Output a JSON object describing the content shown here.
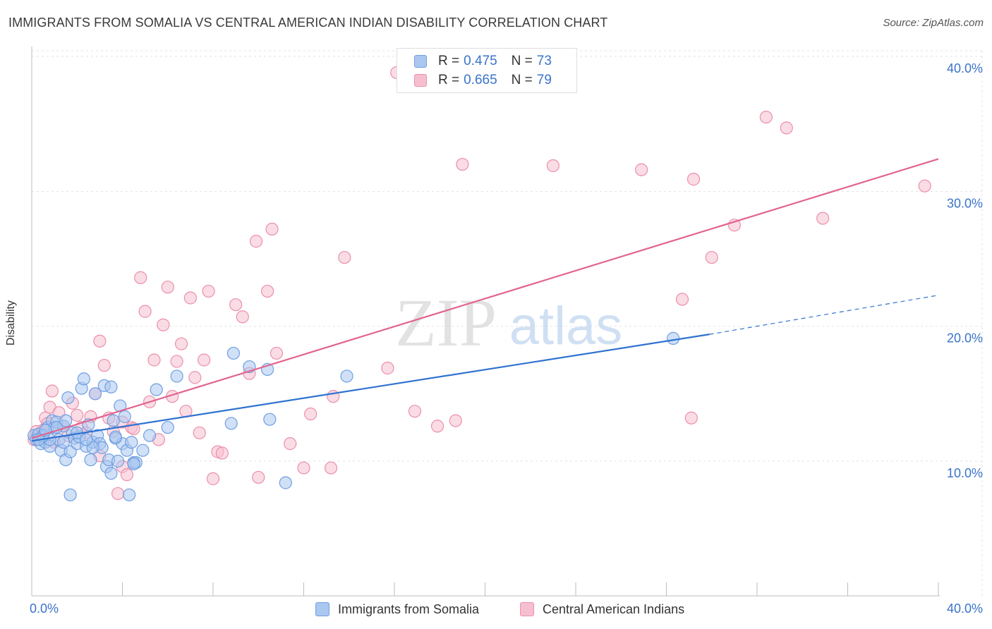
{
  "title": "IMMIGRANTS FROM SOMALIA VS CENTRAL AMERICAN INDIAN DISABILITY CORRELATION CHART",
  "source": "Source: ZipAtlas.com",
  "watermark": {
    "zip": "ZIP",
    "atlas": "atlas"
  },
  "legend": {
    "r_label": "R =",
    "n_label": "N =",
    "rows": [
      {
        "r": "0.475",
        "n": "73"
      },
      {
        "r": "0.665",
        "n": "79"
      }
    ]
  },
  "colors": {
    "blue_fill": "#aac7f0",
    "blue_stroke": "#6f9fe0",
    "blue_line": "#2f72d0",
    "pink_fill": "#f6bfd0",
    "pink_stroke": "#eb8fab",
    "pink_line": "#e2648e",
    "tick_text": "#3a73c9",
    "grid": "#e3e3e3"
  },
  "chart_data": {
    "type": "scatter",
    "title": "IMMIGRANTS FROM SOMALIA VS CENTRAL AMERICAN INDIAN DISABILITY CORRELATION CHART",
    "xlabel": "",
    "ylabel": "Disability",
    "xlim": [
      0,
      40
    ],
    "ylim": [
      0,
      42
    ],
    "x_tick_labels": [
      "0.0%",
      "40.0%"
    ],
    "y_ticks": [
      10,
      20,
      30,
      40
    ],
    "y_tick_labels": [
      "10.0%",
      "20.0%",
      "30.0%",
      "40.0%"
    ],
    "grid": true,
    "legend_position": "top-center",
    "series": [
      {
        "name": "Immigrants from Somalia",
        "color": "blue",
        "R": 0.475,
        "N": 73,
        "trend": {
          "x0": 0.0,
          "y0": 11.5,
          "x1": 29.9,
          "y1": 19.4,
          "dashed_to_x": 40.0,
          "dashed_to_y": 22.3
        },
        "points": [
          [
            0.1,
            11.9
          ],
          [
            0.2,
            11.6
          ],
          [
            0.3,
            12.0
          ],
          [
            0.4,
            11.3
          ],
          [
            0.5,
            11.8
          ],
          [
            0.6,
            11.4
          ],
          [
            0.7,
            12.5
          ],
          [
            0.8,
            11.1
          ],
          [
            0.9,
            13.0
          ],
          [
            1.0,
            12.5
          ],
          [
            1.1,
            12.9
          ],
          [
            1.2,
            11.6
          ],
          [
            1.3,
            10.8
          ],
          [
            1.4,
            11.4
          ],
          [
            1.5,
            10.1
          ],
          [
            1.6,
            14.7
          ],
          [
            1.7,
            10.7
          ],
          [
            1.8,
            12.1
          ],
          [
            1.9,
            11.7
          ],
          [
            2.0,
            11.3
          ],
          [
            2.1,
            11.8
          ],
          [
            2.2,
            15.4
          ],
          [
            2.3,
            16.1
          ],
          [
            2.4,
            11.1
          ],
          [
            2.5,
            12.7
          ],
          [
            2.6,
            10.1
          ],
          [
            2.7,
            11.4
          ],
          [
            2.8,
            15.0
          ],
          [
            2.9,
            11.9
          ],
          [
            3.0,
            11.3
          ],
          [
            3.1,
            11.0
          ],
          [
            3.2,
            15.6
          ],
          [
            3.3,
            9.6
          ],
          [
            3.4,
            10.1
          ],
          [
            3.5,
            9.1
          ],
          [
            3.6,
            13.0
          ],
          [
            3.7,
            11.7
          ],
          [
            3.8,
            10.0
          ],
          [
            3.9,
            14.1
          ],
          [
            4.0,
            11.3
          ],
          [
            4.1,
            13.3
          ],
          [
            4.2,
            10.8
          ],
          [
            4.3,
            7.5
          ],
          [
            4.4,
            11.4
          ],
          [
            4.5,
            9.9
          ],
          [
            4.6,
            9.9
          ],
          [
            4.9,
            10.8
          ],
          [
            5.2,
            11.9
          ],
          [
            5.5,
            15.3
          ],
          [
            6.0,
            12.5
          ],
          [
            6.4,
            16.3
          ],
          [
            8.8,
            12.8
          ],
          [
            8.9,
            18.0
          ],
          [
            9.6,
            17.0
          ],
          [
            10.4,
            16.8
          ],
          [
            10.5,
            13.1
          ],
          [
            11.2,
            8.4
          ],
          [
            13.9,
            16.3
          ],
          [
            28.3,
            19.1
          ],
          [
            1.7,
            7.5
          ],
          [
            0.8,
            11.6
          ],
          [
            1.4,
            12.6
          ],
          [
            2.0,
            12.1
          ],
          [
            0.5,
            11.9
          ],
          [
            0.3,
            11.6
          ],
          [
            3.5,
            15.5
          ],
          [
            1.1,
            12.5
          ],
          [
            2.7,
            11.0
          ],
          [
            0.6,
            12.3
          ],
          [
            1.5,
            13.0
          ],
          [
            4.5,
            9.8
          ],
          [
            3.7,
            11.8
          ],
          [
            2.4,
            11.6
          ]
        ]
      },
      {
        "name": "Central American Indians",
        "color": "pink",
        "R": 0.665,
        "N": 79,
        "trend": {
          "x0": 0.0,
          "y0": 11.7,
          "x1": 40.0,
          "y1": 32.4
        },
        "points": [
          [
            0.1,
            11.6
          ],
          [
            0.2,
            12.2
          ],
          [
            0.3,
            11.8
          ],
          [
            0.5,
            12.3
          ],
          [
            0.6,
            13.2
          ],
          [
            0.7,
            12.8
          ],
          [
            0.8,
            14.0
          ],
          [
            0.9,
            15.2
          ],
          [
            1.0,
            11.4
          ],
          [
            1.2,
            13.6
          ],
          [
            1.4,
            12.6
          ],
          [
            1.6,
            11.9
          ],
          [
            1.8,
            14.3
          ],
          [
            2.0,
            13.4
          ],
          [
            2.2,
            12.5
          ],
          [
            2.4,
            12.1
          ],
          [
            2.6,
            13.3
          ],
          [
            2.8,
            15.0
          ],
          [
            3.0,
            18.9
          ],
          [
            3.2,
            17.1
          ],
          [
            3.4,
            13.2
          ],
          [
            3.6,
            12.2
          ],
          [
            3.8,
            7.6
          ],
          [
            4.0,
            9.6
          ],
          [
            4.2,
            9.0
          ],
          [
            4.4,
            12.5
          ],
          [
            4.5,
            12.4
          ],
          [
            4.8,
            23.6
          ],
          [
            5.0,
            21.1
          ],
          [
            5.2,
            14.4
          ],
          [
            5.4,
            17.5
          ],
          [
            5.6,
            11.6
          ],
          [
            5.8,
            20.1
          ],
          [
            6.0,
            22.9
          ],
          [
            6.2,
            14.8
          ],
          [
            6.4,
            17.4
          ],
          [
            6.6,
            18.7
          ],
          [
            6.8,
            13.7
          ],
          [
            7.0,
            22.1
          ],
          [
            7.2,
            16.2
          ],
          [
            7.4,
            12.1
          ],
          [
            7.6,
            17.5
          ],
          [
            7.8,
            22.6
          ],
          [
            8.0,
            8.7
          ],
          [
            8.2,
            10.7
          ],
          [
            8.4,
            10.6
          ],
          [
            9.0,
            21.6
          ],
          [
            9.3,
            20.7
          ],
          [
            9.6,
            16.5
          ],
          [
            9.9,
            26.3
          ],
          [
            10.0,
            8.8
          ],
          [
            10.4,
            22.6
          ],
          [
            10.6,
            27.2
          ],
          [
            10.8,
            18.0
          ],
          [
            11.4,
            11.3
          ],
          [
            12.0,
            9.5
          ],
          [
            12.3,
            13.5
          ],
          [
            13.2,
            9.5
          ],
          [
            13.3,
            14.8
          ],
          [
            13.8,
            25.1
          ],
          [
            15.7,
            16.9
          ],
          [
            16.1,
            38.8
          ],
          [
            16.9,
            13.7
          ],
          [
            17.9,
            12.6
          ],
          [
            18.7,
            13.0
          ],
          [
            19.0,
            32.0
          ],
          [
            23.0,
            31.9
          ],
          [
            26.9,
            31.6
          ],
          [
            28.7,
            22.0
          ],
          [
            29.1,
            13.2
          ],
          [
            29.2,
            30.9
          ],
          [
            30.0,
            25.1
          ],
          [
            31.0,
            27.5
          ],
          [
            32.4,
            35.5
          ],
          [
            33.3,
            34.7
          ],
          [
            34.9,
            28.0
          ],
          [
            39.4,
            30.4
          ],
          [
            4.0,
            12.9
          ],
          [
            3.0,
            10.4
          ]
        ]
      }
    ]
  }
}
